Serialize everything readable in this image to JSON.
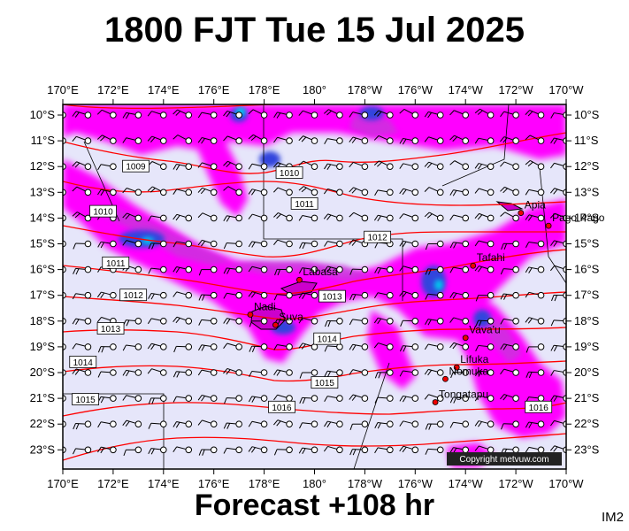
{
  "header": {
    "title": "1800 FJT Tue 15 Jul 2025"
  },
  "footer": {
    "label": "Forecast +108 hr",
    "code": "IM2"
  },
  "map": {
    "lon_labels": [
      "170°E",
      "172°E",
      "174°E",
      "176°E",
      "178°E",
      "180°",
      "178°W",
      "176°W",
      "174°W",
      "172°W",
      "170°W"
    ],
    "lat_labels": [
      "10°S",
      "11°S",
      "12°S",
      "13°S",
      "14°S",
      "15°S",
      "16°S",
      "17°S",
      "18°S",
      "19°S",
      "20°S",
      "21°S",
      "22°S",
      "23°S"
    ],
    "places": [
      {
        "name": "Apia",
        "lon": -171.8,
        "lat": -13.8
      },
      {
        "name": "Pago Pago",
        "lon": -170.7,
        "lat": -14.3
      },
      {
        "name": "Tafahi",
        "lon": -173.7,
        "lat": -15.85
      },
      {
        "name": "Labasa",
        "lon": 179.4,
        "lat": -16.4
      },
      {
        "name": "Nadi",
        "lon": 177.45,
        "lat": -17.75
      },
      {
        "name": "Suva",
        "lon": 178.45,
        "lat": -18.15
      },
      {
        "name": "Vava'u",
        "lon": -174.0,
        "lat": -18.65
      },
      {
        "name": "Lifuka",
        "lon": -174.35,
        "lat": -19.8
      },
      {
        "name": "Nomuka",
        "lon": -174.8,
        "lat": -20.25
      },
      {
        "name": "Tongatapu",
        "lon": -175.2,
        "lat": -21.15
      }
    ],
    "isobars": [
      {
        "value": "1009",
        "label_lon": 172.9,
        "label_lat": -12.0
      },
      {
        "value": "1010",
        "label_lon": 171.6,
        "label_lat": -13.75
      },
      {
        "value": "1010",
        "label_lon": 179.0,
        "label_lat": -12.25
      },
      {
        "value": "1011",
        "label_lon": 179.6,
        "label_lat": -13.45
      },
      {
        "value": "1011",
        "label_lon": 172.1,
        "label_lat": -15.75
      },
      {
        "value": "1012",
        "label_lon": 172.8,
        "label_lat": -17.0
      },
      {
        "value": "1012",
        "label_lon": -177.5,
        "label_lat": -14.75
      },
      {
        "value": "1013",
        "label_lon": 171.9,
        "label_lat": -18.3
      },
      {
        "value": "1013",
        "label_lon": -179.3,
        "label_lat": -17.05
      },
      {
        "value": "1014",
        "label_lon": 170.8,
        "label_lat": -19.6
      },
      {
        "value": "1014",
        "label_lon": -179.5,
        "label_lat": -18.7
      },
      {
        "value": "1015",
        "label_lon": 170.9,
        "label_lat": -21.05
      },
      {
        "value": "1015",
        "label_lon": -179.6,
        "label_lat": -20.4
      },
      {
        "value": "1016",
        "label_lon": 178.7,
        "label_lat": -21.35
      },
      {
        "value": "1016",
        "label_lon": -171.1,
        "label_lat": -21.35
      }
    ],
    "copyright": "Copyright metvuw.com",
    "colors": {
      "background": "#e6e6fa",
      "precip_light": "#ff00ff",
      "precip_medium": "#cc33dd",
      "precip_heavy": "#3344dd",
      "precip_extreme": "#00ccee",
      "isobar": "#ff0000"
    }
  }
}
